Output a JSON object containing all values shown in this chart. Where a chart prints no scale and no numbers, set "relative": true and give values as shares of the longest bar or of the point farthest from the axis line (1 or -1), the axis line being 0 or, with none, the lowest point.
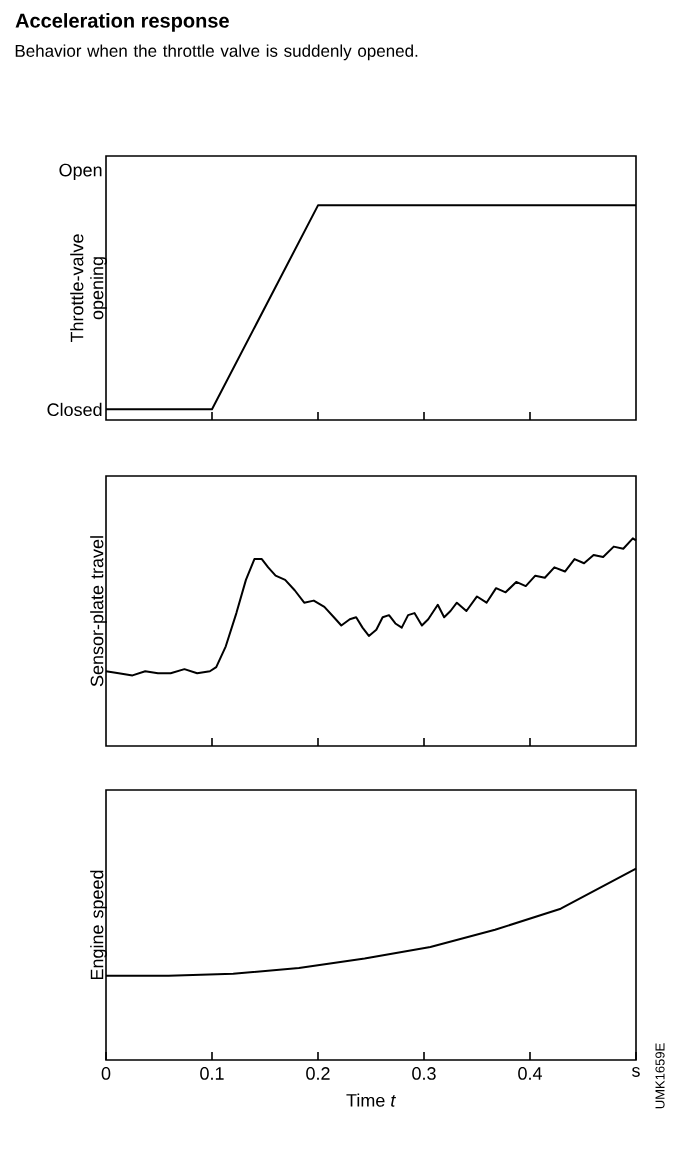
{
  "chart_data": [
    {
      "type": "line",
      "title": "Acceleration response",
      "subtitle": "Behavior when the throttle valve is suddenly opened.",
      "ylabel": "Throttle-valve opening",
      "color": "#000000",
      "x": [
        0,
        0.1,
        0.2,
        0.5
      ],
      "relative": true,
      "values": [
        0.05,
        0.05,
        1,
        1
      ],
      "annotations": [
        "Closed",
        "Open"
      ],
      "xlim": [
        0,
        0.5
      ],
      "xticks": [
        {
          "value": 0.1,
          "label": null
        },
        {
          "value": 0.2,
          "label": null
        },
        {
          "value": 0.3,
          "label": null
        },
        {
          "value": 0.4,
          "label": null
        }
      ],
      "tick_labels": false
    },
    {
      "type": "line",
      "ylabel": "Sensor-plate travel",
      "color": "#000000",
      "relative": true,
      "x": [
        0,
        0.012,
        0.025,
        0.037,
        0.049,
        0.061,
        0.074,
        0.086,
        0.098,
        0.104,
        0.113,
        0.123,
        0.132,
        0.14,
        0.147,
        0.153,
        0.16,
        0.169,
        0.178,
        0.187,
        0.196,
        0.206,
        0.215,
        0.222,
        0.23,
        0.236,
        0.242,
        0.248,
        0.255,
        0.261,
        0.267,
        0.273,
        0.279,
        0.285,
        0.291,
        0.298,
        0.304,
        0.313,
        0.319,
        0.325,
        0.331,
        0.34,
        0.35,
        0.359,
        0.368,
        0.377,
        0.387,
        0.396,
        0.405,
        0.414,
        0.423,
        0.433,
        0.442,
        0.451,
        0.46,
        0.469,
        0.479,
        0.488,
        0.497,
        0.5
      ],
      "values": [
        0.36,
        0.35,
        0.34,
        0.36,
        0.35,
        0.35,
        0.37,
        0.35,
        0.36,
        0.38,
        0.48,
        0.64,
        0.8,
        0.9,
        0.9,
        0.86,
        0.82,
        0.8,
        0.75,
        0.69,
        0.7,
        0.67,
        0.62,
        0.58,
        0.61,
        0.62,
        0.57,
        0.53,
        0.56,
        0.62,
        0.63,
        0.59,
        0.57,
        0.63,
        0.64,
        0.58,
        0.61,
        0.68,
        0.62,
        0.65,
        0.69,
        0.65,
        0.72,
        0.69,
        0.76,
        0.74,
        0.79,
        0.77,
        0.82,
        0.81,
        0.86,
        0.84,
        0.9,
        0.88,
        0.92,
        0.91,
        0.96,
        0.95,
        1,
        0.99
      ],
      "xlim": [
        0,
        0.5
      ],
      "xticks": [
        {
          "value": 0.1,
          "label": null
        },
        {
          "value": 0.2,
          "label": null
        },
        {
          "value": 0.3,
          "label": null
        },
        {
          "value": 0.4,
          "label": null
        }
      ],
      "tick_labels": false
    },
    {
      "type": "line",
      "ylabel": "Engine speed",
      "xlabel": "Time *t*",
      "color": "#000000",
      "relative": true,
      "x": [
        0,
        0.059,
        0.12,
        0.182,
        0.244,
        0.306,
        0.367,
        0.429,
        0.5
      ],
      "values": [
        0.44,
        0.44,
        0.45,
        0.48,
        0.53,
        0.59,
        0.68,
        0.79,
        1
      ],
      "xlim": [
        0,
        0.5
      ],
      "xticks": [
        0,
        0.1,
        0.2,
        0.3,
        0.4,
        {
          "value": 0.5,
          "label": "s"
        }
      ],
      "tick_labels": "x",
      "annotations": [
        "UMK1659E"
      ]
    }
  ]
}
